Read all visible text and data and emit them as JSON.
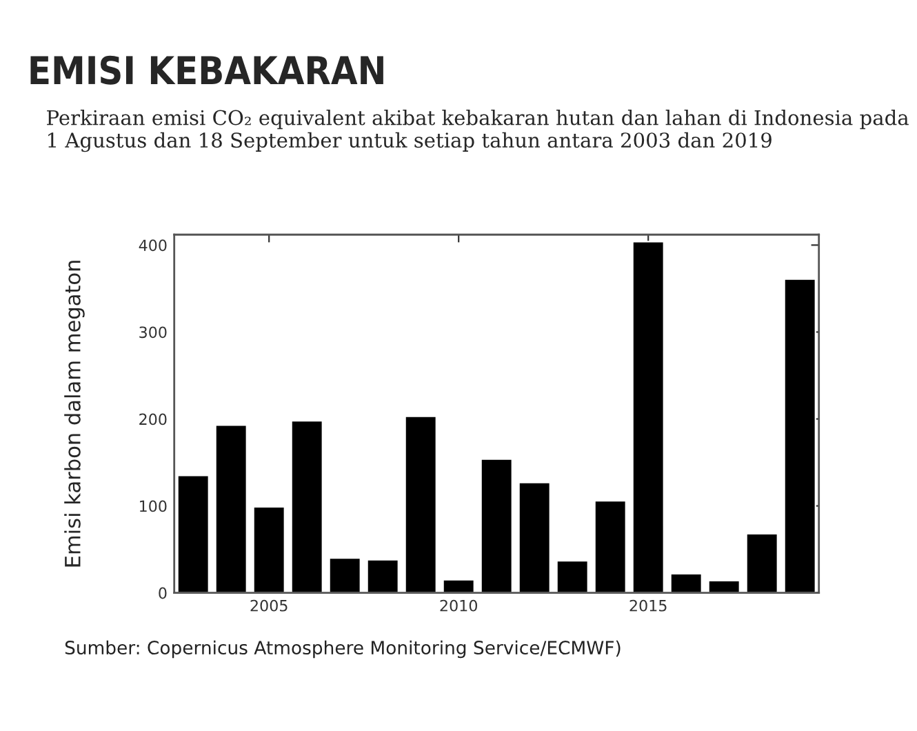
{
  "chart_data": {
    "type": "bar",
    "title": "EMISI KEBAKARAN",
    "subtitle": "Perkiraan emisi CO₂ equivalent akibat kebakaran hutan dan lahan di Indonesia pada 1 Agustus dan 18 September untuk setiap tahun antara 2003 dan 2019",
    "ylabel": "Emisi karbon dalam megaton",
    "annotations": [
      "Sumber: Copernicus Atmosphere Monitoring Service/ECMWF)"
    ],
    "x": [
      2003,
      2004,
      2005,
      2006,
      2007,
      2008,
      2009,
      2010,
      2011,
      2012,
      2013,
      2014,
      2015,
      2016,
      2017,
      2018,
      2019
    ],
    "values": [
      135,
      193,
      99,
      198,
      40,
      38,
      203,
      15,
      154,
      127,
      37,
      106,
      404,
      22,
      14,
      68,
      361
    ],
    "color": "#000000",
    "xlim": [
      2002.5,
      2019.5
    ],
    "xticks": [
      2005,
      2010,
      2015
    ],
    "ylim": [
      0,
      412
    ],
    "yticks": [
      0,
      100,
      200,
      300,
      400
    ],
    "grid": false,
    "legend": false
  }
}
